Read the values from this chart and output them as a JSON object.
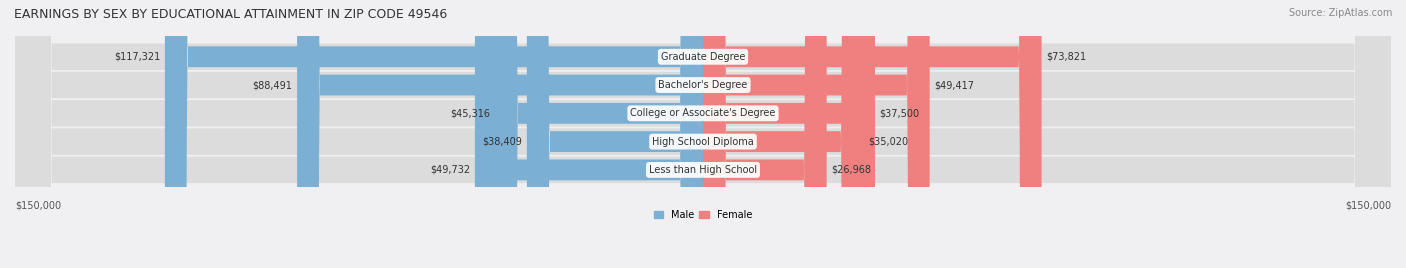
{
  "title": "EARNINGS BY SEX BY EDUCATIONAL ATTAINMENT IN ZIP CODE 49546",
  "source": "Source: ZipAtlas.com",
  "categories": [
    "Less than High School",
    "High School Diploma",
    "College or Associate's Degree",
    "Bachelor's Degree",
    "Graduate Degree"
  ],
  "male_values": [
    49732,
    38409,
    45316,
    88491,
    117321
  ],
  "female_values": [
    26968,
    35020,
    37500,
    49417,
    73821
  ],
  "max_val": 150000,
  "male_color": "#7bafd4",
  "female_color": "#f08080",
  "male_label": "Male",
  "female_label": "Female",
  "bg_color": "#f0f0f0",
  "bar_bg_color": "#e8e8e8",
  "row_bg_color": "#f5f5f5",
  "axis_label_left": "$150,000",
  "axis_label_right": "$150,000"
}
